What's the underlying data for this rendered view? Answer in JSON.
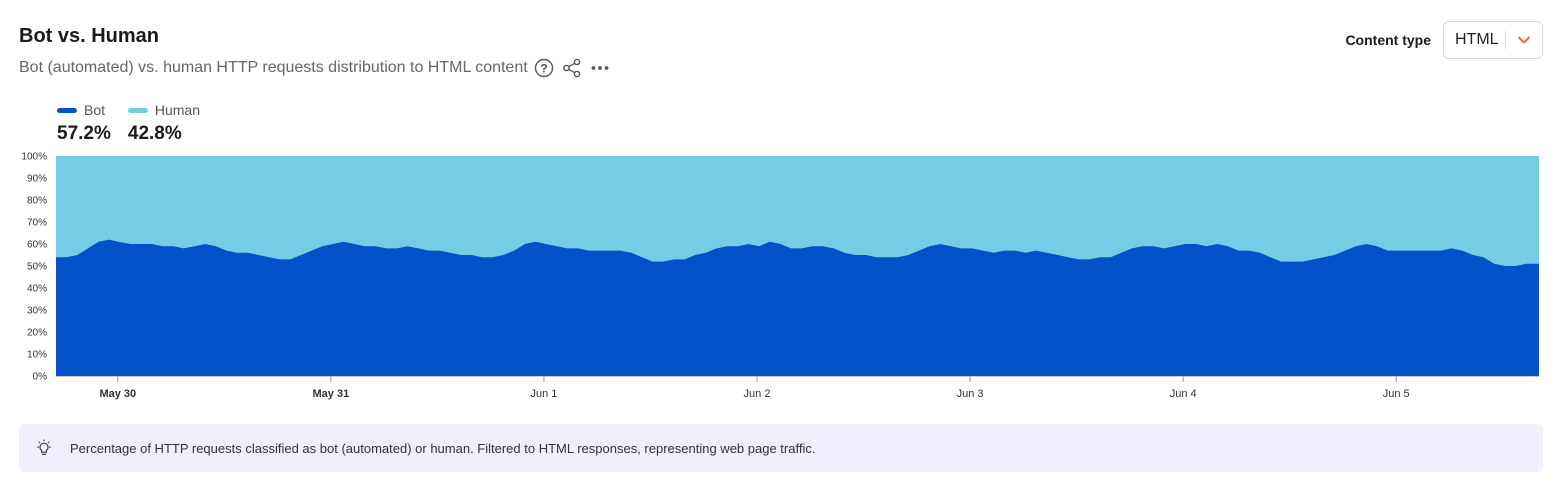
{
  "header": {
    "title": "Bot vs. Human",
    "subtitle": "Bot (automated) vs. human HTTP requests distribution to HTML content",
    "icons": [
      "help-icon",
      "share-icon",
      "more-icon"
    ]
  },
  "content_type": {
    "label": "Content type",
    "selected": "HTML"
  },
  "legend": [
    {
      "name": "Bot",
      "value": "57.2%",
      "color": "#0251c8"
    },
    {
      "name": "Human",
      "value": "42.8%",
      "color": "#74cde5"
    }
  ],
  "info": {
    "text": "Percentage of HTTP requests classified as bot (automated) or human. Filtered to HTML responses, representing web page traffic.",
    "icon": "lightbulb-icon"
  },
  "chart_data": {
    "type": "area",
    "stacked": true,
    "ylim": [
      0,
      100
    ],
    "yticks": [
      "0%",
      "10%",
      "20%",
      "30%",
      "40%",
      "50%",
      "60%",
      "70%",
      "80%",
      "90%",
      "100%"
    ],
    "xticks": [
      {
        "label": "May 30",
        "day": 0,
        "bold": true
      },
      {
        "label": "May 31",
        "day": 1,
        "bold": true
      },
      {
        "label": "Jun 1",
        "day": 2,
        "bold": false
      },
      {
        "label": "Jun 2",
        "day": 3,
        "bold": false
      },
      {
        "label": "Jun 3",
        "day": 4,
        "bold": false
      },
      {
        "label": "Jun 4",
        "day": 5,
        "bold": false
      },
      {
        "label": "Jun 5",
        "day": 6,
        "bold": false
      }
    ],
    "x_range_days": [
      -0.29,
      6.67
    ],
    "series": [
      {
        "name": "Bot",
        "color": "#0251c8",
        "points": [
          [
            -0.29,
            54
          ],
          [
            -0.24,
            54
          ],
          [
            -0.19,
            55
          ],
          [
            -0.14,
            58
          ],
          [
            -0.09,
            61
          ],
          [
            -0.04,
            62
          ],
          [
            0.0,
            61
          ],
          [
            0.06,
            60
          ],
          [
            0.11,
            60
          ],
          [
            0.16,
            60
          ],
          [
            0.21,
            59
          ],
          [
            0.26,
            59
          ],
          [
            0.31,
            58
          ],
          [
            0.36,
            59
          ],
          [
            0.41,
            60
          ],
          [
            0.46,
            59
          ],
          [
            0.51,
            57
          ],
          [
            0.56,
            56
          ],
          [
            0.61,
            56
          ],
          [
            0.66,
            55
          ],
          [
            0.71,
            54
          ],
          [
            0.76,
            53
          ],
          [
            0.81,
            53
          ],
          [
            0.86,
            55
          ],
          [
            0.91,
            57
          ],
          [
            0.96,
            59
          ],
          [
            1.01,
            60
          ],
          [
            1.06,
            61
          ],
          [
            1.11,
            60
          ],
          [
            1.16,
            59
          ],
          [
            1.21,
            59
          ],
          [
            1.26,
            58
          ],
          [
            1.31,
            58
          ],
          [
            1.36,
            59
          ],
          [
            1.41,
            58
          ],
          [
            1.46,
            57
          ],
          [
            1.51,
            57
          ],
          [
            1.56,
            56
          ],
          [
            1.61,
            55
          ],
          [
            1.66,
            55
          ],
          [
            1.71,
            54
          ],
          [
            1.76,
            54
          ],
          [
            1.81,
            55
          ],
          [
            1.86,
            57
          ],
          [
            1.91,
            60
          ],
          [
            1.96,
            61
          ],
          [
            2.01,
            60
          ],
          [
            2.06,
            59
          ],
          [
            2.11,
            58
          ],
          [
            2.16,
            58
          ],
          [
            2.21,
            57
          ],
          [
            2.26,
            57
          ],
          [
            2.31,
            57
          ],
          [
            2.36,
            57
          ],
          [
            2.41,
            56
          ],
          [
            2.46,
            54
          ],
          [
            2.51,
            52
          ],
          [
            2.56,
            52
          ],
          [
            2.61,
            53
          ],
          [
            2.66,
            53
          ],
          [
            2.71,
            55
          ],
          [
            2.76,
            56
          ],
          [
            2.81,
            58
          ],
          [
            2.86,
            59
          ],
          [
            2.91,
            59
          ],
          [
            2.96,
            60
          ],
          [
            3.01,
            59
          ],
          [
            3.06,
            61
          ],
          [
            3.11,
            60
          ],
          [
            3.16,
            58
          ],
          [
            3.21,
            58
          ],
          [
            3.26,
            59
          ],
          [
            3.31,
            59
          ],
          [
            3.36,
            58
          ],
          [
            3.41,
            56
          ],
          [
            3.46,
            55
          ],
          [
            3.51,
            55
          ],
          [
            3.56,
            54
          ],
          [
            3.61,
            54
          ],
          [
            3.66,
            54
          ],
          [
            3.71,
            55
          ],
          [
            3.76,
            57
          ],
          [
            3.81,
            59
          ],
          [
            3.86,
            60
          ],
          [
            3.91,
            59
          ],
          [
            3.96,
            58
          ],
          [
            4.01,
            58
          ],
          [
            4.06,
            57
          ],
          [
            4.11,
            56
          ],
          [
            4.16,
            57
          ],
          [
            4.21,
            57
          ],
          [
            4.26,
            56
          ],
          [
            4.31,
            57
          ],
          [
            4.36,
            56
          ],
          [
            4.41,
            55
          ],
          [
            4.46,
            54
          ],
          [
            4.51,
            53
          ],
          [
            4.56,
            53
          ],
          [
            4.61,
            54
          ],
          [
            4.66,
            54
          ],
          [
            4.71,
            56
          ],
          [
            4.76,
            58
          ],
          [
            4.81,
            59
          ],
          [
            4.86,
            59
          ],
          [
            4.91,
            58
          ],
          [
            4.96,
            59
          ],
          [
            5.01,
            60
          ],
          [
            5.06,
            60
          ],
          [
            5.11,
            59
          ],
          [
            5.16,
            60
          ],
          [
            5.21,
            59
          ],
          [
            5.26,
            57
          ],
          [
            5.31,
            57
          ],
          [
            5.36,
            56
          ],
          [
            5.41,
            54
          ],
          [
            5.46,
            52
          ],
          [
            5.51,
            52
          ],
          [
            5.56,
            52
          ],
          [
            5.61,
            53
          ],
          [
            5.66,
            54
          ],
          [
            5.71,
            55
          ],
          [
            5.76,
            57
          ],
          [
            5.81,
            59
          ],
          [
            5.86,
            60
          ],
          [
            5.91,
            59
          ],
          [
            5.96,
            57
          ],
          [
            6.01,
            57
          ],
          [
            6.06,
            57
          ],
          [
            6.11,
            57
          ],
          [
            6.16,
            57
          ],
          [
            6.21,
            57
          ],
          [
            6.26,
            58
          ],
          [
            6.31,
            57
          ],
          [
            6.36,
            55
          ],
          [
            6.41,
            54
          ],
          [
            6.46,
            51
          ],
          [
            6.51,
            50
          ],
          [
            6.56,
            50
          ],
          [
            6.61,
            51
          ],
          [
            6.67,
            51
          ]
        ]
      },
      {
        "name": "Human",
        "color": "#74cde5"
      }
    ]
  }
}
